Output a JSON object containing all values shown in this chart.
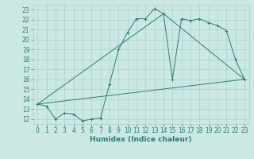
{
  "xlabel": "Humidex (Indice chaleur)",
  "xlim": [
    -0.5,
    23.5
  ],
  "ylim": [
    11.5,
    23.5
  ],
  "xticks": [
    0,
    1,
    2,
    3,
    4,
    5,
    6,
    7,
    8,
    9,
    10,
    11,
    12,
    13,
    14,
    15,
    16,
    17,
    18,
    19,
    20,
    21,
    22,
    23
  ],
  "yticks": [
    12,
    13,
    14,
    15,
    16,
    17,
    18,
    19,
    20,
    21,
    22,
    23
  ],
  "bg_color": "#cce8e5",
  "grid_color": "#aacfcc",
  "line_color": "#2e7d70",
  "line1_x": [
    0,
    1,
    2,
    3,
    4,
    5,
    6,
    7,
    8,
    9,
    10,
    11,
    12,
    13,
    14,
    15,
    16,
    17,
    18,
    19,
    20,
    21,
    22,
    23
  ],
  "line1_y": [
    13.5,
    13.3,
    12.0,
    12.6,
    12.5,
    11.8,
    12.0,
    12.1,
    15.5,
    19.0,
    20.7,
    22.1,
    22.1,
    23.1,
    22.6,
    16.0,
    22.1,
    21.9,
    22.1,
    21.7,
    21.4,
    20.9,
    18.0,
    16.0
  ],
  "line2_x": [
    0,
    23
  ],
  "line2_y": [
    13.5,
    16.0
  ],
  "line3_x": [
    0,
    14,
    23
  ],
  "line3_y": [
    13.5,
    22.6,
    16.0
  ],
  "tick_fontsize": 5.5,
  "xlabel_fontsize": 6.5
}
